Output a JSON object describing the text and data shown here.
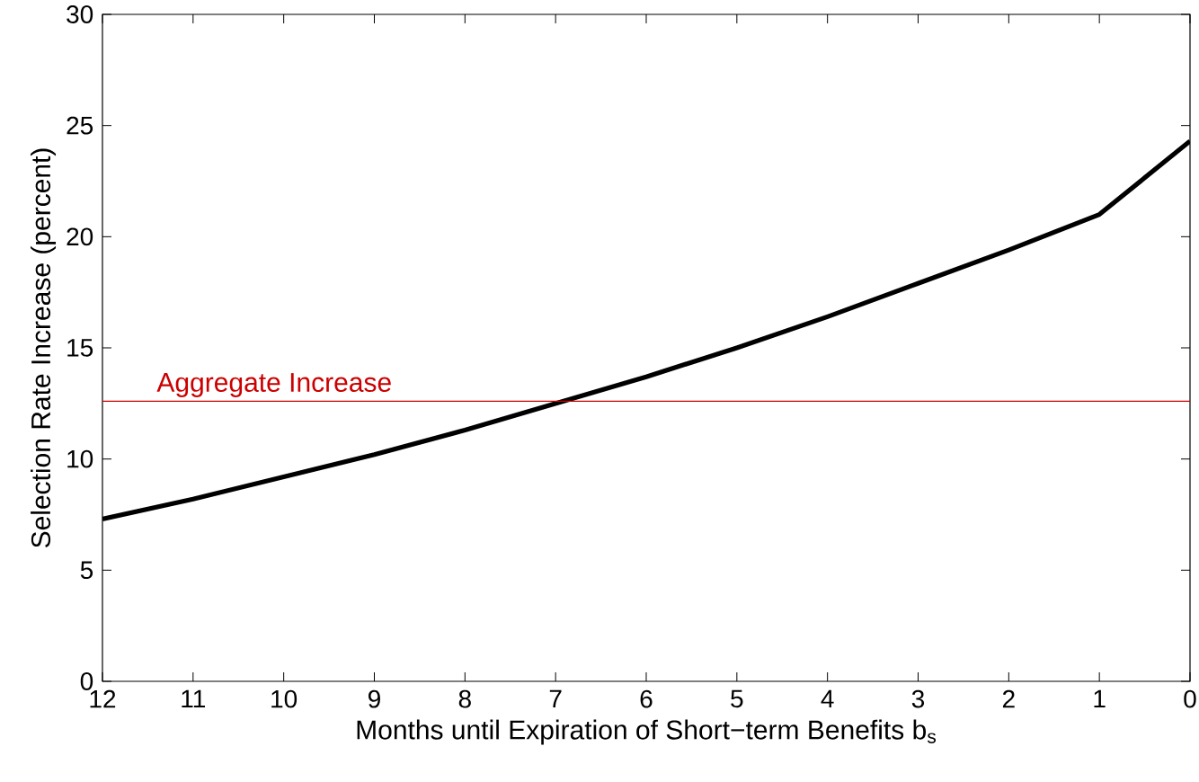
{
  "chart_data": {
    "type": "line",
    "xlabel": "Months until Expiration of Short−term Benefits b$_{s}$",
    "ylabel": "Selection Rate Increase (percent)",
    "x": [
      12,
      11,
      10,
      9,
      8,
      7,
      6,
      5,
      4,
      3,
      2,
      1,
      0
    ],
    "series": [
      {
        "color": "#000000",
        "values": [
          7.3,
          8.2,
          9.2,
          10.2,
          11.3,
          12.5,
          13.7,
          15.0,
          16.4,
          17.9,
          19.4,
          21.0,
          24.3
        ]
      }
    ],
    "xlim": [
      12,
      0
    ],
    "xticks": [
      12,
      11,
      10,
      9,
      8,
      7,
      6,
      5,
      4,
      3,
      2,
      1,
      0
    ],
    "ylim": [
      0,
      30
    ],
    "yticks": [
      0,
      5,
      10,
      15,
      20,
      25,
      30
    ],
    "ref_lines": [
      {
        "axis": "y",
        "value": 12.6,
        "label": "Aggregate Increase",
        "color": "#cc0000"
      }
    ],
    "grid": false,
    "marker": "none",
    "line_style": "solid"
  }
}
